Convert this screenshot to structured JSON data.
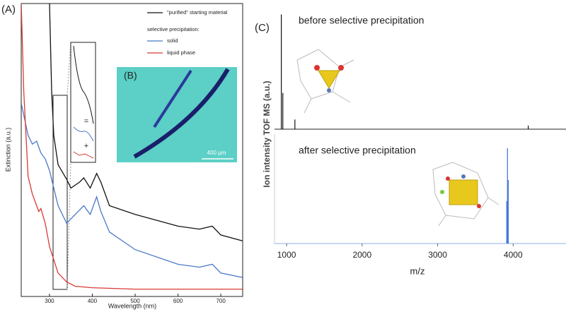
{
  "chart_data": [
    {
      "type": "line",
      "label": "(A)",
      "xlabel": "Wavelength (nm)",
      "ylabel": "Extinction (a.u.)",
      "xlim": [
        234,
        751
      ],
      "ylim": [
        0,
        100
      ],
      "xticks": [
        300,
        400,
        500,
        600,
        700
      ],
      "legend_subtitle": "selective precipitation:",
      "series": [
        {
          "name": "\"purified\" starting material",
          "color": "#111111",
          "x": [
            300,
            305,
            310,
            320,
            340,
            350,
            370,
            380,
            395,
            410,
            420,
            440,
            500,
            600,
            650,
            680,
            700,
            750
          ],
          "values": [
            100,
            70,
            55,
            45,
            40,
            37,
            39,
            40.5,
            37,
            42,
            39,
            31,
            28,
            24,
            23,
            24,
            21,
            19
          ]
        },
        {
          "name": "solid",
          "color": "#4a78c8",
          "x": [
            234,
            250,
            260,
            270,
            280,
            290,
            300,
            310,
            320,
            340,
            360,
            380,
            395,
            410,
            420,
            440,
            500,
            600,
            650,
            680,
            700,
            750
          ],
          "values": [
            66,
            55,
            52,
            53,
            49,
            47,
            43,
            37,
            31,
            25,
            28,
            31,
            28,
            34,
            29,
            22,
            16,
            11,
            10,
            11,
            8,
            6.5
          ]
        },
        {
          "name": "liquid phase",
          "color": "#d83a32",
          "x": [
            234,
            240,
            250,
            260,
            270,
            275,
            280,
            290,
            300,
            320,
            340,
            360,
            400,
            500,
            750
          ],
          "values": [
            100,
            70,
            41,
            35,
            31,
            29,
            30,
            25,
            17,
            8,
            5,
            3.5,
            3,
            2.5,
            2.5
          ]
        }
      ],
      "inset": {
        "label": "(B)",
        "scale": "400 µm"
      },
      "zoom_marks": [
        "=",
        "+"
      ]
    },
    {
      "type": "spectrum",
      "label": "(C)",
      "ylabel": "Ion intensity TOF MS (a.u.)",
      "xlabel": "m/z",
      "xlim": [
        840,
        4700
      ],
      "xticks": [
        1000,
        2000,
        3000,
        4000
      ],
      "ylim": [
        0,
        100
      ],
      "panels": [
        {
          "title": "before selective precipitation",
          "color": "#111111",
          "x": [
            930,
            950,
            1110,
            4200
          ],
          "values": [
            95,
            30,
            8,
            3
          ]
        },
        {
          "title": "after selective precipitation",
          "color": "#3a6fd8",
          "x": [
            3915,
            3925,
            3935
          ],
          "values": [
            40,
            90,
            60
          ]
        }
      ]
    }
  ]
}
